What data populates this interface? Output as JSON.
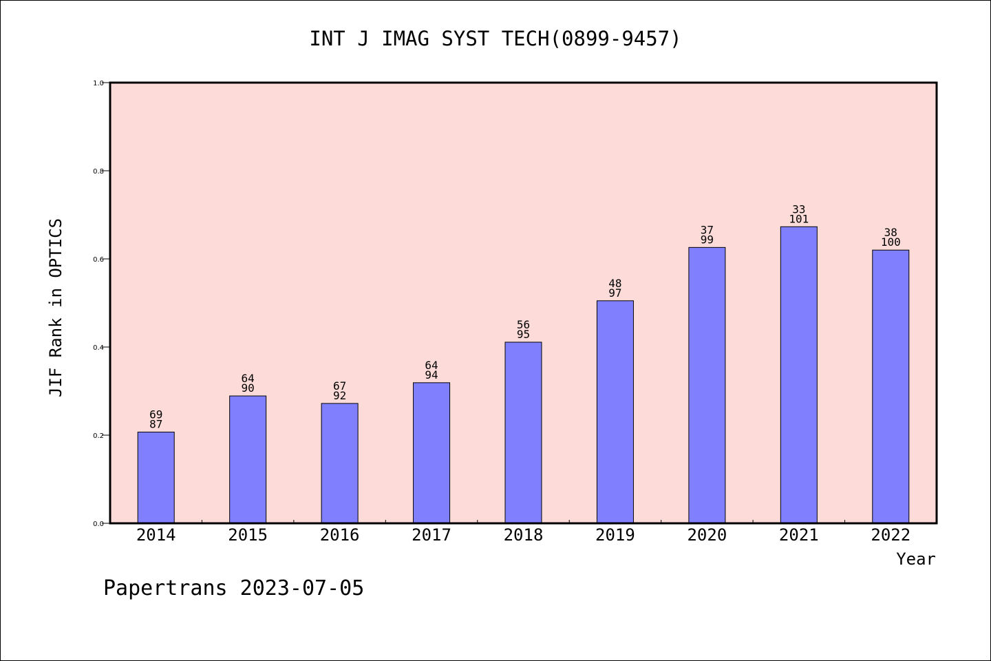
{
  "chart_data": {
    "type": "bar",
    "title": "INT J IMAG SYST TECH(0899-9457)",
    "xlabel": "Year",
    "ylabel": "JIF Rank in OPTICS",
    "categories": [
      "2014",
      "2015",
      "2016",
      "2017",
      "2018",
      "2019",
      "2020",
      "2021",
      "2022"
    ],
    "values": [
      0.207,
      0.289,
      0.272,
      0.319,
      0.411,
      0.505,
      0.626,
      0.673,
      0.62
    ],
    "rank": [
      "69",
      "64",
      "67",
      "64",
      "56",
      "48",
      "37",
      "33",
      "38"
    ],
    "total": [
      "87",
      "90",
      "92",
      "94",
      "95",
      "97",
      "99",
      "101",
      "100"
    ],
    "ylim": [
      0,
      1.0
    ],
    "yticks": [
      "0.0",
      "0.2",
      "0.4",
      "0.6",
      "0.8",
      "1.0"
    ],
    "grid": false,
    "colors": {
      "plot_bg": "#fddbd8",
      "bar": "#8080ff",
      "axis": "#000000"
    }
  },
  "footer": "Papertrans 2023-07-05"
}
